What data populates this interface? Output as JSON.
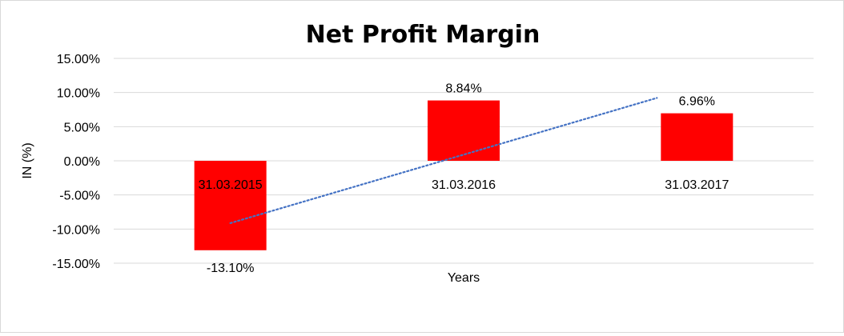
{
  "chart_data": {
    "type": "bar",
    "title": "Net Profit Margin",
    "xlabel": "Years",
    "ylabel": "IN (%)",
    "categories": [
      "31.03.2015",
      "31.03.2016",
      "31.03.2017"
    ],
    "values": [
      -13.1,
      8.84,
      6.96
    ],
    "data_labels": [
      "-13.10%",
      "8.84%",
      "6.96%"
    ],
    "ylim": [
      -15,
      15
    ],
    "yticks": [
      15,
      10,
      5,
      0,
      -5,
      -10,
      -15
    ],
    "ytick_labels": [
      "15.00%",
      "10.00%",
      "5.00%",
      "0.00%",
      "-5.00%",
      "-10.00%",
      "-15.00%"
    ],
    "bar_color": "#ff0000",
    "trendline": {
      "type": "linear",
      "style": "dotted",
      "color": "#4472c4"
    },
    "grid": true,
    "legend": "none"
  }
}
